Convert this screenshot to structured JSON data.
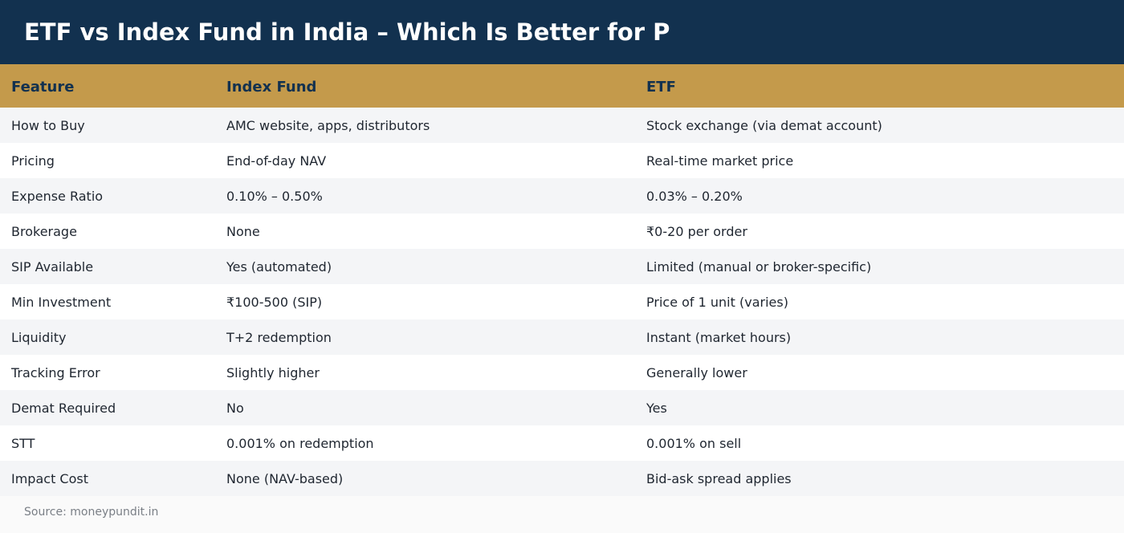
{
  "title": "ETF vs Index Fund in India – Which Is Better for P",
  "table": {
    "headers": [
      "Feature",
      "Index Fund",
      "ETF"
    ],
    "rows": [
      [
        "How to Buy",
        "AMC website, apps, distributors",
        "Stock exchange (via demat account)"
      ],
      [
        "Pricing",
        "End-of-day NAV",
        "Real-time market price"
      ],
      [
        "Expense Ratio",
        "0.10% – 0.50%",
        "0.03% – 0.20%"
      ],
      [
        "Brokerage",
        "None",
        "₹0-20 per order"
      ],
      [
        "SIP Available",
        "Yes (automated)",
        "Limited (manual or broker-specific)"
      ],
      [
        "Min Investment",
        "₹100-500 (SIP)",
        "Price of 1 unit (varies)"
      ],
      [
        "Liquidity",
        "T+2 redemption",
        "Instant (market hours)"
      ],
      [
        "Tracking Error",
        "Slightly higher",
        "Generally lower"
      ],
      [
        "Demat Required",
        "No",
        "Yes"
      ],
      [
        "STT",
        "0.001% on redemption",
        "0.001% on sell"
      ],
      [
        "Impact Cost",
        "None (NAV-based)",
        "Bid-ask spread applies"
      ]
    ]
  },
  "source": "Source: moneypundit.in",
  "colors": {
    "title_bg": "#12314f",
    "header_bg": "#c49a4b",
    "header_text": "#12314f",
    "row_alt": "#f4f5f7",
    "row": "#ffffff"
  }
}
